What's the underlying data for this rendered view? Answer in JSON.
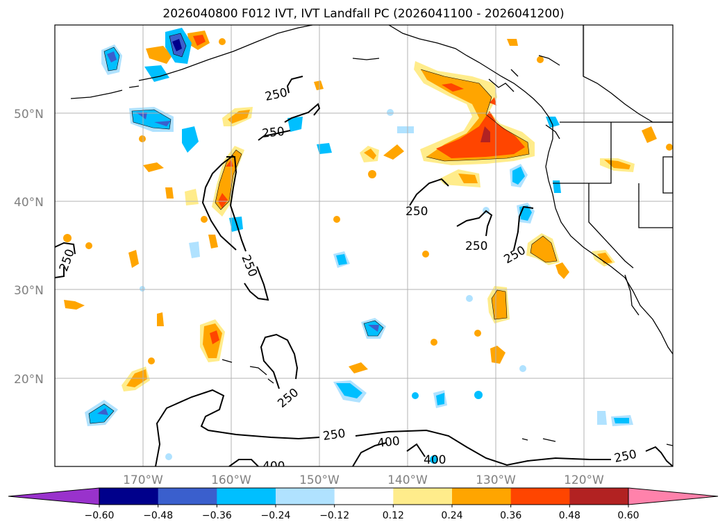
{
  "title": "2026040800 F012 IVT, IVT Landfall PC (2026041100 - 2026041200)",
  "lat_labels": [
    "50°N",
    "40°N",
    "30°N",
    "20°N"
  ],
  "lon_labels": [
    "170°W",
    "160°W",
    "150°W",
    "140°W",
    "130°W",
    "120°W"
  ],
  "ivt_contour_labels": [
    "250",
    "250",
    "250",
    "250",
    "250",
    "250",
    "250",
    "250",
    "250",
    "250",
    "400",
    "400",
    "400"
  ],
  "colorbar": {
    "ticks": [
      "−0.60",
      "−0.48",
      "−0.36",
      "−0.24",
      "−0.12",
      "0.12",
      "0.24",
      "0.36",
      "0.48",
      "0.60"
    ],
    "colors": [
      "#9932cc",
      "#00008b",
      "#3a5fcd",
      "#00bfff",
      "#b0e2ff",
      "#ffffff",
      "#ffec8b",
      "#ffa500",
      "#ff4500",
      "#b22222",
      "#ff82ab"
    ]
  },
  "chart_data": {
    "type": "heatmap",
    "title": "2026040800 F012 IVT, IVT Landfall PC (2026041100 - 2026041200)",
    "lon_range": [
      -180,
      -110
    ],
    "lat_range": [
      10,
      60
    ],
    "gridlines": true,
    "contour_levels": [
      250,
      400
    ],
    "colorbar_levels": [
      -0.6,
      -0.48,
      -0.36,
      -0.24,
      -0.12,
      0.12,
      0.24,
      0.36,
      0.48,
      0.6
    ],
    "colorbar_extend": "both"
  }
}
